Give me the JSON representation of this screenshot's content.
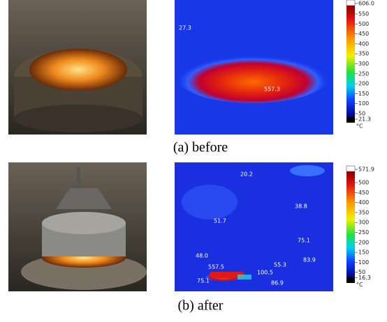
{
  "panels": [
    {
      "caption": "(a) before",
      "colorbar": [
        "606.0",
        "550",
        "500",
        "450",
        "400",
        "350",
        "300",
        "250",
        "200",
        "150",
        "100",
        "50",
        "21.3"
      ],
      "unit": "°C",
      "annotations": [
        "27.3",
        "557.3"
      ]
    },
    {
      "caption": "(b) after",
      "colorbar": [
        "571.9",
        "500",
        "450",
        "400",
        "350",
        "300",
        "250",
        "200",
        "150",
        "100",
        "50",
        "16.3"
      ],
      "unit": "°C",
      "annotations": [
        "20.2",
        "38.8",
        "51.7",
        "75.1",
        "48.0",
        "55.3",
        "83.9",
        "100.5",
        "557.5",
        "75.1",
        "86.9"
      ]
    }
  ]
}
